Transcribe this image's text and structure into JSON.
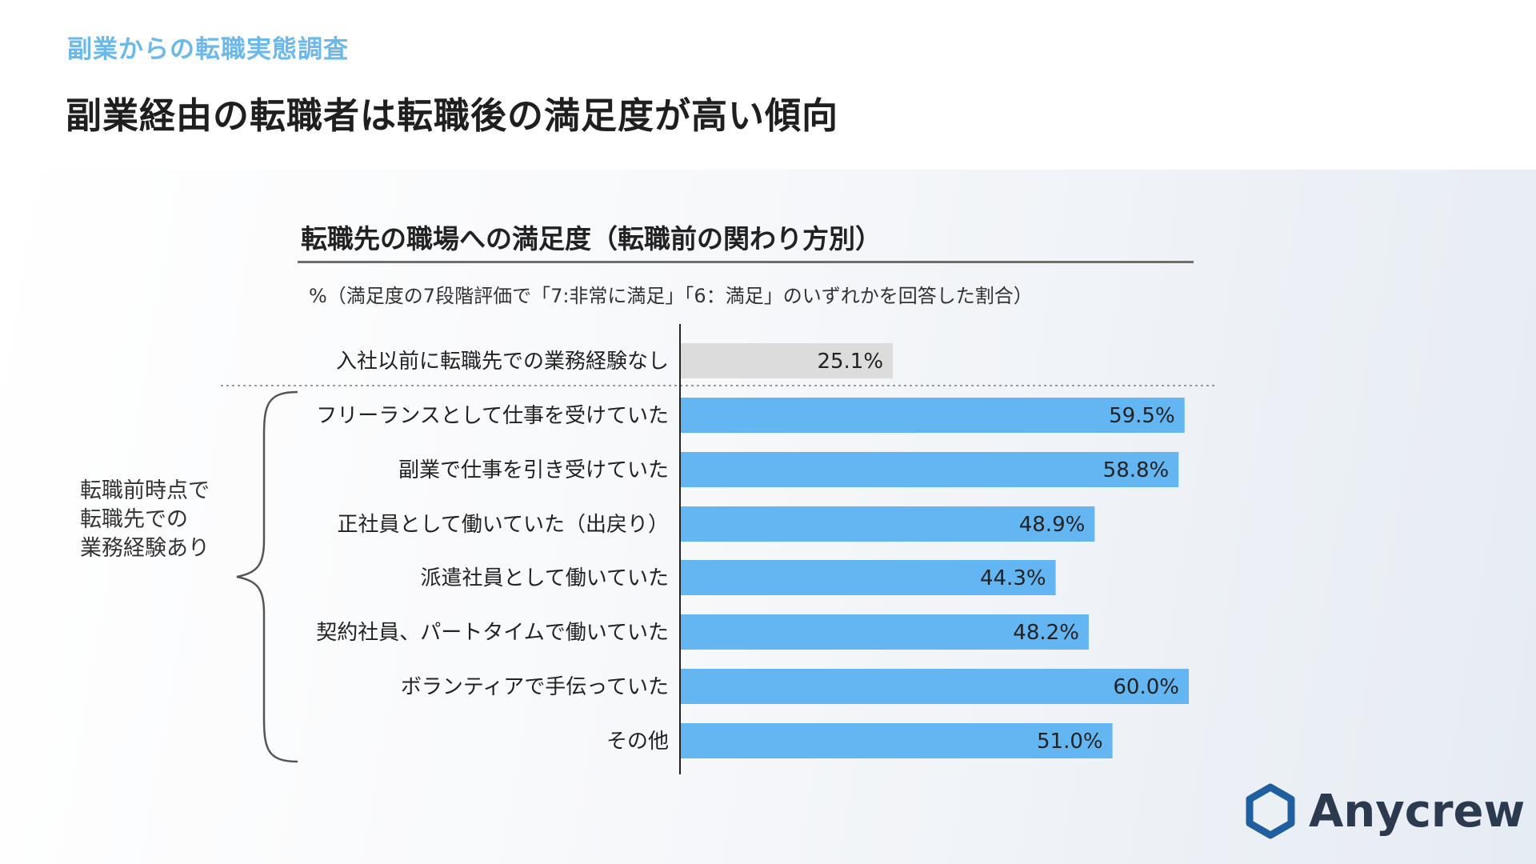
{
  "header": {
    "eyebrow": "副業からの転職実態調査",
    "headline": "副業経由の転職者は転職後の満足度が高い傾向"
  },
  "chart_data": {
    "type": "bar",
    "orientation": "horizontal",
    "title": "転職先の職場への満足度（転職前の関わり方別）",
    "subtitle": "%（満足度の7段階評価で「7:非常に満足」「6：満足」のいずれかを回答した割合）",
    "categories": [
      "入社以前に転職先での業務経験なし",
      "フリーランスとして仕事を受けていた",
      "副業で仕事を引き受けていた",
      "正社員として働いていた（出戻り）",
      "派遣社員として働いていた",
      "契約社員、パートタイムで働いていた",
      "ボランティアで手伝っていた",
      "その他"
    ],
    "values": [
      25.1,
      59.5,
      58.8,
      48.9,
      44.3,
      48.2,
      60.0,
      51.0
    ],
    "value_labels": [
      "25.1%",
      "59.5%",
      "58.8%",
      "48.9%",
      "44.3%",
      "48.2%",
      "60.0%",
      "51.0%"
    ],
    "xlim": [
      0,
      60
    ],
    "colors": {
      "baseline_bar": "#dcdcdc",
      "bar": "#63b6f2",
      "axis": "#222222",
      "divider": "#999999"
    },
    "group": {
      "label": "転職前時点で\n転職先での\n業務経験あり",
      "members": [
        1,
        2,
        3,
        4,
        5,
        6,
        7
      ]
    }
  },
  "brand": {
    "logo_text": "Anycrew",
    "logo_icon": "hexagon-icon",
    "logo_color": "#1f5fa0"
  }
}
